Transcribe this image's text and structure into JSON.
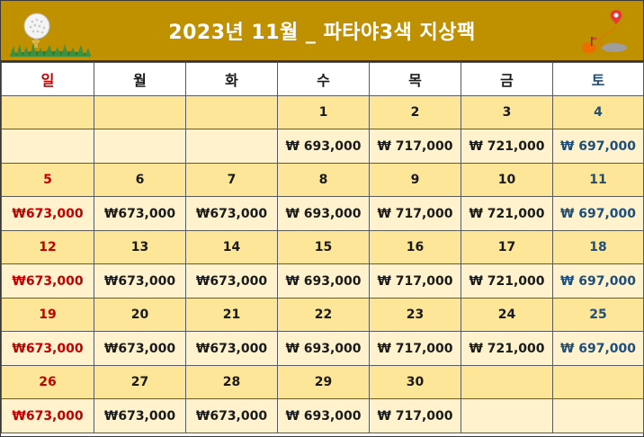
{
  "title": "2023년 11월 _ 파타야3색 지상팩",
  "weekdays": [
    "일",
    "월",
    "화",
    "수",
    "목",
    "금",
    "토"
  ],
  "weeks": [
    {
      "days": [
        "",
        "",
        "",
        "1",
        "2",
        "3",
        "4"
      ],
      "prices": [
        "",
        "",
        "",
        "₩ 693,000",
        "₩ 717,000",
        "₩ 721,000",
        "₩ 697,000"
      ]
    },
    {
      "days": [
        "5",
        "6",
        "7",
        "8",
        "9",
        "10",
        "11"
      ],
      "prices": [
        "₩673,000",
        "₩673,000",
        "₩673,000",
        "₩ 693,000",
        "₩ 717,000",
        "₩ 721,000",
        "₩ 697,000"
      ]
    },
    {
      "days": [
        "12",
        "13",
        "14",
        "15",
        "16",
        "17",
        "18"
      ],
      "prices": [
        "₩673,000",
        "₩673,000",
        "₩673,000",
        "₩ 693,000",
        "₩ 717,000",
        "₩ 721,000",
        "₩ 697,000"
      ]
    },
    {
      "days": [
        "19",
        "20",
        "21",
        "22",
        "23",
        "24",
        "25"
      ],
      "prices": [
        "₩673,000",
        "₩673,000",
        "₩673,000",
        "₩ 693,000",
        "₩ 717,000",
        "₩ 721,000",
        "₩ 697,000"
      ]
    },
    {
      "days": [
        "26",
        "27",
        "28",
        "29",
        "30",
        "",
        ""
      ],
      "prices": [
        "₩673,000",
        "₩673,000",
        "₩673,000",
        "₩ 693,000",
        "₩ 717,000",
        "",
        ""
      ]
    }
  ],
  "colors": {
    "banner": "#bf9000",
    "sunday": "#c00000",
    "saturday": "#1f4e79",
    "day_row": "#fee699",
    "price_row": "#fff2cc"
  },
  "icons": {
    "left": "golf-ball-on-tee-icon",
    "right": "golf-course-map-icon"
  }
}
